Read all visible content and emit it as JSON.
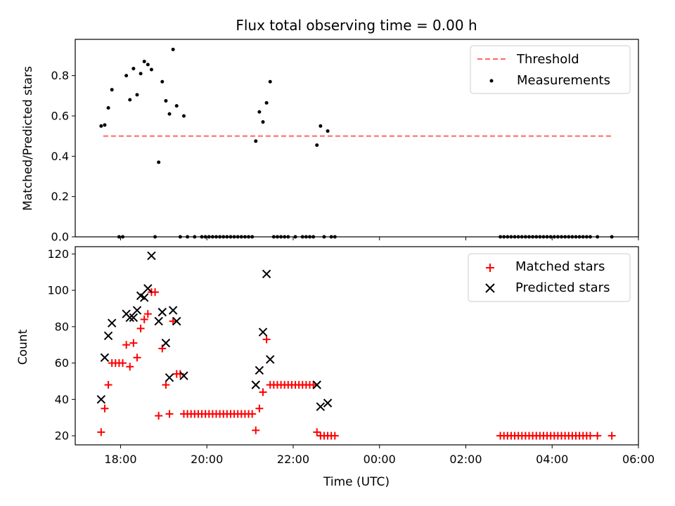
{
  "title": "Flux total observing time = 0.00 h",
  "chart_data": [
    {
      "type": "scatter",
      "ylabel": "Matched/Predicted stars",
      "ylim": [
        0,
        0.98
      ],
      "yticks": [
        0.0,
        0.2,
        0.4,
        0.6,
        0.8
      ],
      "yticklabels": [
        "0.0",
        "0.2",
        "0.4",
        "0.6",
        "0.8"
      ],
      "legend_position": "upper right",
      "threshold": {
        "name": "Threshold",
        "color": "#ff6666",
        "style": "dashed",
        "value": 0.5,
        "x_start": "17:36",
        "x_end": "05:25"
      },
      "series": [
        {
          "name": "Measurements",
          "marker": "dot",
          "color": "#000000",
          "points": [
            [
              "17:33",
              0.55
            ],
            [
              "17:38",
              0.555
            ],
            [
              "17:43",
              0.64
            ],
            [
              "17:48",
              0.73
            ],
            [
              "17:58",
              0.0
            ],
            [
              "18:03",
              0.0
            ],
            [
              "18:08",
              0.8
            ],
            [
              "18:13",
              0.68
            ],
            [
              "18:18",
              0.835
            ],
            [
              "18:23",
              0.705
            ],
            [
              "18:28",
              0.81
            ],
            [
              "18:33",
              0.87
            ],
            [
              "18:38",
              0.855
            ],
            [
              "18:43",
              0.83
            ],
            [
              "18:48",
              0.0
            ],
            [
              "18:53",
              0.37
            ],
            [
              "18:58",
              0.77
            ],
            [
              "19:03",
              0.675
            ],
            [
              "19:08",
              0.61
            ],
            [
              "19:13",
              0.93
            ],
            [
              "19:18",
              0.65
            ],
            [
              "19:23",
              0.0
            ],
            [
              "19:28",
              0.6
            ],
            [
              "19:33",
              0.0
            ],
            [
              "19:43",
              0.0
            ],
            [
              "19:53",
              0.0
            ],
            [
              "19:58",
              0.0
            ],
            [
              "20:03",
              0.0
            ],
            [
              "20:08",
              0.0
            ],
            [
              "20:13",
              0.0
            ],
            [
              "20:18",
              0.0
            ],
            [
              "20:23",
              0.0
            ],
            [
              "20:28",
              0.0
            ],
            [
              "20:33",
              0.0
            ],
            [
              "20:38",
              0.0
            ],
            [
              "20:43",
              0.0
            ],
            [
              "20:48",
              0.0
            ],
            [
              "20:53",
              0.0
            ],
            [
              "20:58",
              0.0
            ],
            [
              "21:03",
              0.0
            ],
            [
              "21:08",
              0.475
            ],
            [
              "21:13",
              0.62
            ],
            [
              "21:18",
              0.57
            ],
            [
              "21:23",
              0.665
            ],
            [
              "21:28",
              0.77
            ],
            [
              "21:33",
              0.0
            ],
            [
              "21:38",
              0.0
            ],
            [
              "21:43",
              0.0
            ],
            [
              "21:48",
              0.0
            ],
            [
              "21:53",
              0.0
            ],
            [
              "22:03",
              0.0
            ],
            [
              "22:13",
              0.0
            ],
            [
              "22:18",
              0.0
            ],
            [
              "22:23",
              0.0
            ],
            [
              "22:28",
              0.0
            ],
            [
              "22:33",
              0.455
            ],
            [
              "22:38",
              0.55
            ],
            [
              "22:43",
              0.0
            ],
            [
              "22:48",
              0.525
            ],
            [
              "22:53",
              0.0
            ],
            [
              "22:58",
              0.0
            ],
            [
              "02:48",
              0.0
            ],
            [
              "02:53",
              0.0
            ],
            [
              "02:58",
              0.0
            ],
            [
              "03:03",
              0.0
            ],
            [
              "03:08",
              0.0
            ],
            [
              "03:13",
              0.0
            ],
            [
              "03:18",
              0.0
            ],
            [
              "03:23",
              0.0
            ],
            [
              "03:28",
              0.0
            ],
            [
              "03:33",
              0.0
            ],
            [
              "03:38",
              0.0
            ],
            [
              "03:43",
              0.0
            ],
            [
              "03:48",
              0.0
            ],
            [
              "03:53",
              0.0
            ],
            [
              "03:58",
              0.0
            ],
            [
              "04:03",
              0.0
            ],
            [
              "04:08",
              0.0
            ],
            [
              "04:13",
              0.0
            ],
            [
              "04:18",
              0.0
            ],
            [
              "04:23",
              0.0
            ],
            [
              "04:28",
              0.0
            ],
            [
              "04:33",
              0.0
            ],
            [
              "04:38",
              0.0
            ],
            [
              "04:43",
              0.0
            ],
            [
              "04:48",
              0.0
            ],
            [
              "04:53",
              0.0
            ],
            [
              "05:03",
              0.0
            ],
            [
              "05:23",
              0.0
            ]
          ]
        }
      ]
    },
    {
      "type": "scatter",
      "xlabel": "Time (UTC)",
      "ylabel": "Count",
      "ylim": [
        15,
        124
      ],
      "xlim": [
        "16:57",
        "06:00"
      ],
      "xticklabels": [
        "18:00",
        "20:00",
        "22:00",
        "00:00",
        "02:00",
        "04:00",
        "06:00"
      ],
      "yticks": [
        20,
        40,
        60,
        80,
        100,
        120
      ],
      "yticklabels": [
        "20",
        "40",
        "60",
        "80",
        "100",
        "120"
      ],
      "legend_position": "upper right",
      "series": [
        {
          "name": "Matched stars",
          "marker": "plus",
          "color": "#ff0000",
          "points": [
            [
              "17:33",
              22
            ],
            [
              "17:38",
              35
            ],
            [
              "17:43",
              48
            ],
            [
              "17:48",
              60
            ],
            [
              "17:53",
              60
            ],
            [
              "17:58",
              60
            ],
            [
              "18:03",
              60
            ],
            [
              "18:08",
              70
            ],
            [
              "18:13",
              58
            ],
            [
              "18:18",
              71
            ],
            [
              "18:23",
              63
            ],
            [
              "18:28",
              79
            ],
            [
              "18:33",
              84
            ],
            [
              "18:38",
              87
            ],
            [
              "18:43",
              99
            ],
            [
              "18:48",
              99
            ],
            [
              "18:53",
              31
            ],
            [
              "18:58",
              68
            ],
            [
              "19:03",
              48
            ],
            [
              "19:08",
              32
            ],
            [
              "19:13",
              83
            ],
            [
              "19:18",
              54
            ],
            [
              "19:23",
              54
            ],
            [
              "19:28",
              32
            ],
            [
              "19:33",
              32
            ],
            [
              "19:38",
              32
            ],
            [
              "19:43",
              32
            ],
            [
              "19:48",
              32
            ],
            [
              "19:53",
              32
            ],
            [
              "19:58",
              32
            ],
            [
              "20:03",
              32
            ],
            [
              "20:08",
              32
            ],
            [
              "20:13",
              32
            ],
            [
              "20:18",
              32
            ],
            [
              "20:23",
              32
            ],
            [
              "20:28",
              32
            ],
            [
              "20:33",
              32
            ],
            [
              "20:38",
              32
            ],
            [
              "20:43",
              32
            ],
            [
              "20:48",
              32
            ],
            [
              "20:53",
              32
            ],
            [
              "20:58",
              32
            ],
            [
              "21:03",
              32
            ],
            [
              "21:08",
              23
            ],
            [
              "21:13",
              35
            ],
            [
              "21:18",
              44
            ],
            [
              "21:23",
              73
            ],
            [
              "21:28",
              48
            ],
            [
              "21:33",
              48
            ],
            [
              "21:38",
              48
            ],
            [
              "21:43",
              48
            ],
            [
              "21:48",
              48
            ],
            [
              "21:53",
              48
            ],
            [
              "21:58",
              48
            ],
            [
              "22:03",
              48
            ],
            [
              "22:08",
              48
            ],
            [
              "22:13",
              48
            ],
            [
              "22:18",
              48
            ],
            [
              "22:23",
              48
            ],
            [
              "22:28",
              48
            ],
            [
              "22:33",
              22
            ],
            [
              "22:38",
              20
            ],
            [
              "22:43",
              20
            ],
            [
              "22:48",
              20
            ],
            [
              "22:53",
              20
            ],
            [
              "22:58",
              20
            ],
            [
              "02:48",
              20
            ],
            [
              "02:53",
              20
            ],
            [
              "02:58",
              20
            ],
            [
              "03:03",
              20
            ],
            [
              "03:08",
              20
            ],
            [
              "03:13",
              20
            ],
            [
              "03:18",
              20
            ],
            [
              "03:23",
              20
            ],
            [
              "03:28",
              20
            ],
            [
              "03:33",
              20
            ],
            [
              "03:38",
              20
            ],
            [
              "03:43",
              20
            ],
            [
              "03:48",
              20
            ],
            [
              "03:53",
              20
            ],
            [
              "03:58",
              20
            ],
            [
              "04:03",
              20
            ],
            [
              "04:08",
              20
            ],
            [
              "04:13",
              20
            ],
            [
              "04:18",
              20
            ],
            [
              "04:23",
              20
            ],
            [
              "04:28",
              20
            ],
            [
              "04:33",
              20
            ],
            [
              "04:38",
              20
            ],
            [
              "04:43",
              20
            ],
            [
              "04:48",
              20
            ],
            [
              "04:53",
              20
            ],
            [
              "05:03",
              20
            ],
            [
              "05:23",
              20
            ]
          ]
        },
        {
          "name": "Predicted stars",
          "marker": "x",
          "color": "#000000",
          "points": [
            [
              "17:33",
              40
            ],
            [
              "17:38",
              63
            ],
            [
              "17:43",
              75
            ],
            [
              "17:48",
              82
            ],
            [
              "18:08",
              87
            ],
            [
              "18:13",
              85
            ],
            [
              "18:18",
              85
            ],
            [
              "18:23",
              89
            ],
            [
              "18:28",
              97
            ],
            [
              "18:33",
              96
            ],
            [
              "18:38",
              101
            ],
            [
              "18:43",
              119
            ],
            [
              "18:53",
              83
            ],
            [
              "18:58",
              88
            ],
            [
              "19:03",
              71
            ],
            [
              "19:08",
              52
            ],
            [
              "19:13",
              89
            ],
            [
              "19:18",
              83
            ],
            [
              "19:28",
              53
            ],
            [
              "21:08",
              48
            ],
            [
              "21:13",
              56
            ],
            [
              "21:18",
              77
            ],
            [
              "21:23",
              109
            ],
            [
              "21:28",
              62
            ],
            [
              "22:33",
              48
            ],
            [
              "22:38",
              36
            ],
            [
              "22:48",
              38
            ]
          ]
        }
      ]
    }
  ]
}
